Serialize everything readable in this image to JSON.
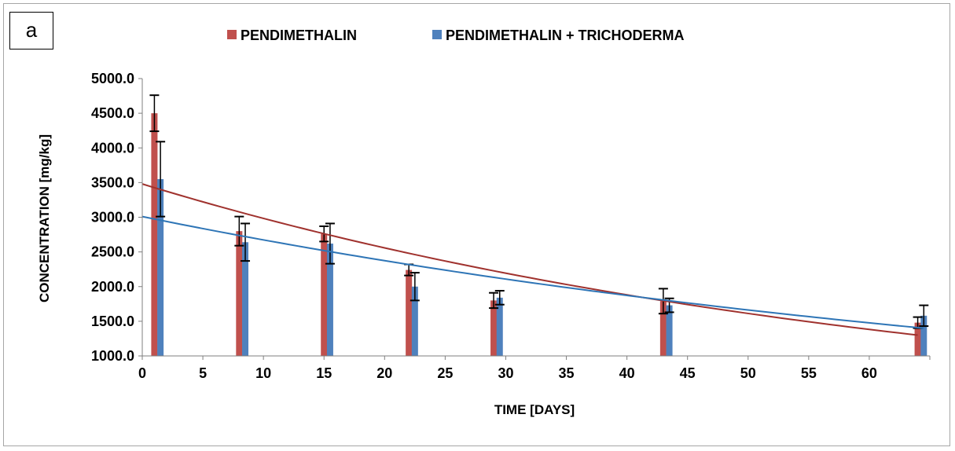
{
  "panel_label": "a",
  "colors": {
    "series_1": "#c0504d",
    "series_2": "#4f81bd",
    "trend_1": "#a0322e",
    "trend_2": "#2e75b6",
    "error_bar": "#000000",
    "axis": "#7f7f7f"
  },
  "chart_data": {
    "type": "bar",
    "xlabel": "TIME [DAYS]",
    "ylabel": "CONCENTRATION [mg/kg]",
    "xlim": [
      0,
      65
    ],
    "ylim": [
      1000,
      5000
    ],
    "x_ticks": [
      "0",
      "5",
      "10",
      "15",
      "20",
      "25",
      "30",
      "35",
      "40",
      "45",
      "50",
      "55",
      "60"
    ],
    "y_ticks": [
      "1000.0",
      "1500.0",
      "2000.0",
      "2500.0",
      "3000.0",
      "3500.0",
      "4000.0",
      "4500.0",
      "5000.0"
    ],
    "legend_position": "top",
    "grid": false,
    "series": [
      {
        "name": "PENDIMETHALIN",
        "x": [
          1,
          8,
          15,
          22,
          29,
          43,
          64
        ],
        "values": [
          4500,
          2800,
          2760,
          2240,
          1800,
          1790,
          1480
        ],
        "error": [
          260,
          210,
          110,
          80,
          110,
          180,
          80
        ],
        "trendline": {
          "type": "exponential",
          "start": [
            0,
            3480
          ],
          "end": [
            64,
            1300
          ]
        }
      },
      {
        "name": "PENDIMETHALIN + TRICHODERMA",
        "x": [
          1.5,
          8.5,
          15.5,
          22.5,
          29.5,
          43.5,
          64.5
        ],
        "values": [
          3550,
          2640,
          2620,
          2000,
          1840,
          1730,
          1580
        ],
        "error": [
          540,
          270,
          290,
          200,
          100,
          100,
          150
        ],
        "trendline": {
          "type": "exponential",
          "start": [
            0,
            3010
          ],
          "end": [
            64.5,
            1400
          ]
        }
      }
    ]
  }
}
